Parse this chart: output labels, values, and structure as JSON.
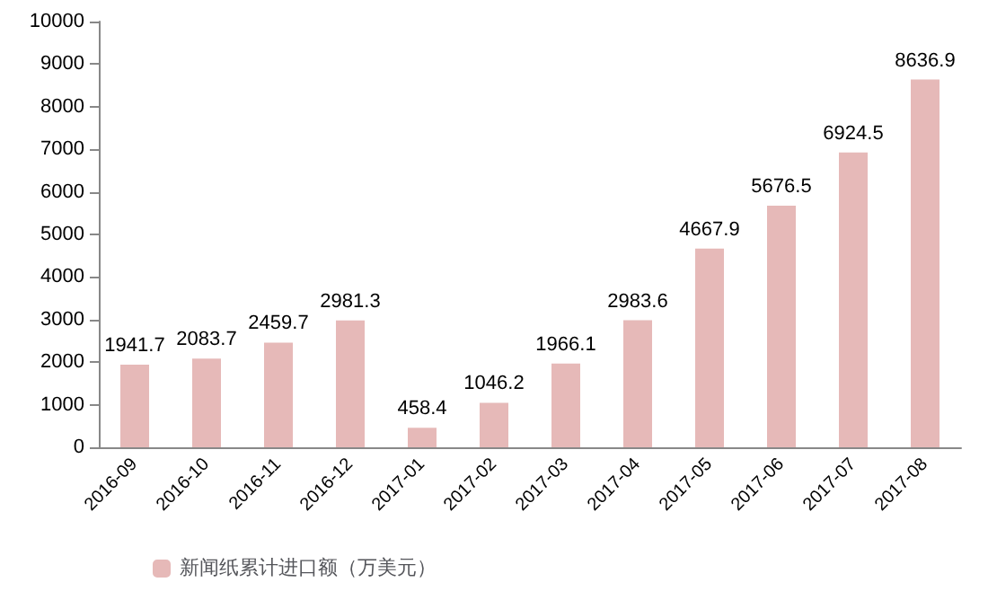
{
  "chart_data": {
    "type": "bar",
    "categories": [
      "2016-09",
      "2016-10",
      "2016-11",
      "2016-12",
      "2017-01",
      "2017-02",
      "2017-03",
      "2017-04",
      "2017-05",
      "2017-06",
      "2017-07",
      "2017-08"
    ],
    "series": [
      {
        "name": "新闻纸累计进口额（万美元）",
        "color": "#e6b9b8",
        "values": [
          1941.7,
          2083.7,
          2459.7,
          2981.3,
          458.4,
          1046.2,
          1966.1,
          2983.6,
          4667.9,
          5676.5,
          6924.5,
          8636.9
        ]
      }
    ],
    "ylim": [
      0,
      10000
    ],
    "yticks": [
      0,
      1000,
      2000,
      3000,
      4000,
      5000,
      6000,
      7000,
      8000,
      9000,
      10000
    ],
    "grid": false,
    "legend": "bottom left",
    "data_labels": true
  }
}
